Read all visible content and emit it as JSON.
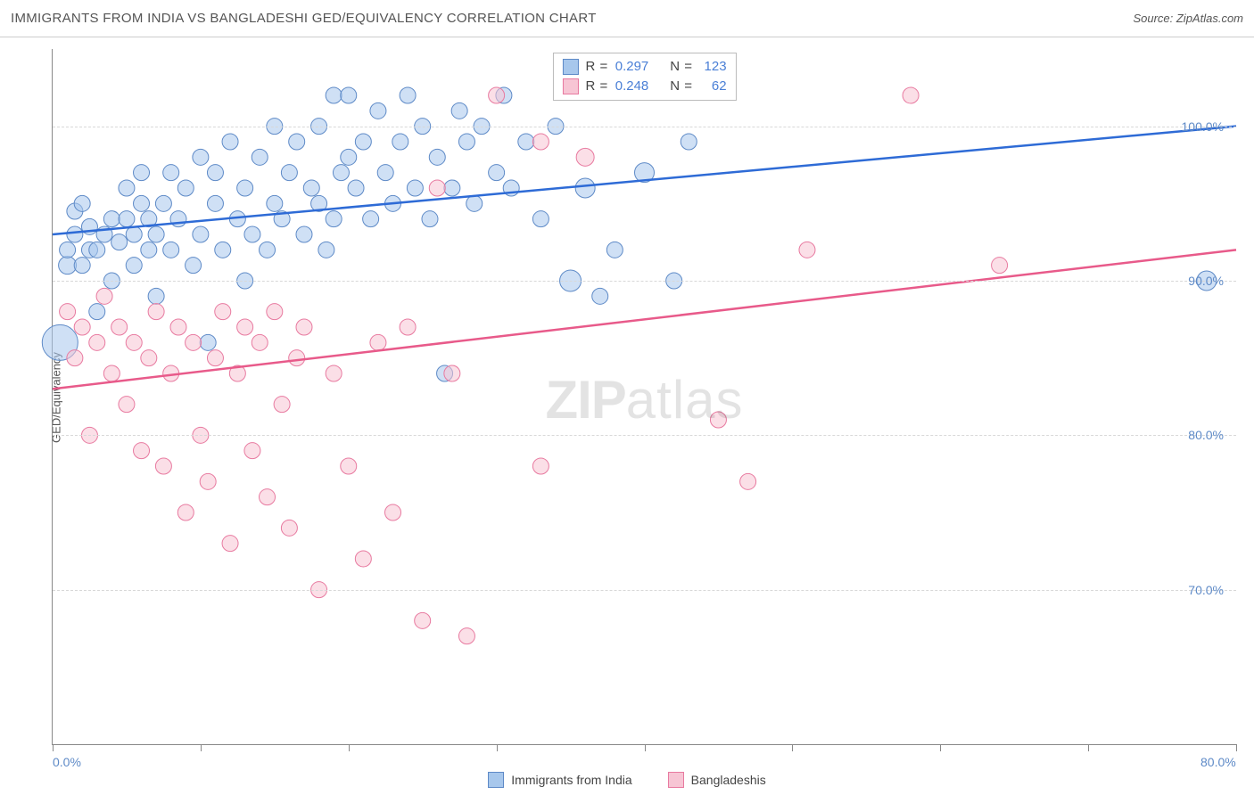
{
  "title": "IMMIGRANTS FROM INDIA VS BANGLADESHI GED/EQUIVALENCY CORRELATION CHART",
  "source_label": "Source: ZipAtlas.com",
  "y_axis_label": "GED/Equivalency",
  "watermark": {
    "bold": "ZIP",
    "rest": "atlas"
  },
  "chart": {
    "type": "scatter",
    "background_color": "#ffffff",
    "grid_color": "#d8d8d8",
    "axis_color": "#888888",
    "xlim": [
      0,
      80
    ],
    "ylim": [
      60,
      105
    ],
    "x_ticks": [
      0,
      10,
      20,
      30,
      40,
      50,
      60,
      70,
      80
    ],
    "x_tick_labels": {
      "0": "0.0%",
      "80": "80.0%"
    },
    "y_ticks": [
      70,
      80,
      90,
      100
    ],
    "y_tick_labels": {
      "70": "70.0%",
      "80": "80.0%",
      "90": "90.0%",
      "100": "100.0%"
    },
    "marker_radius": 9,
    "marker_opacity": 0.55,
    "line_width": 2.5,
    "series": [
      {
        "name": "Immigrants from India",
        "fill_color": "#a7c7ec",
        "stroke_color": "#5e8ac7",
        "line_color": "#2e6bd6",
        "R": "0.297",
        "N": "123",
        "regression": {
          "x1": 0,
          "y1": 93,
          "x2": 80,
          "y2": 100
        },
        "points": [
          [
            0.5,
            86,
            20
          ],
          [
            1,
            91,
            10
          ],
          [
            1,
            92,
            9
          ],
          [
            1.5,
            93,
            9
          ],
          [
            1.5,
            94.5,
            9
          ],
          [
            2,
            95,
            9
          ],
          [
            2,
            91,
            9
          ],
          [
            2.5,
            92,
            9
          ],
          [
            2.5,
            93.5,
            9
          ],
          [
            3,
            88,
            9
          ],
          [
            3,
            92,
            9
          ],
          [
            3.5,
            93,
            9
          ],
          [
            4,
            94,
            9
          ],
          [
            4,
            90,
            9
          ],
          [
            4.5,
            92.5,
            9
          ],
          [
            5,
            94,
            9
          ],
          [
            5,
            96,
            9
          ],
          [
            5.5,
            91,
            9
          ],
          [
            5.5,
            93,
            9
          ],
          [
            6,
            95,
            9
          ],
          [
            6,
            97,
            9
          ],
          [
            6.5,
            92,
            9
          ],
          [
            6.5,
            94,
            9
          ],
          [
            7,
            89,
            9
          ],
          [
            7,
            93,
            9
          ],
          [
            7.5,
            95,
            9
          ],
          [
            8,
            97,
            9
          ],
          [
            8,
            92,
            9
          ],
          [
            8.5,
            94,
            9
          ],
          [
            9,
            96,
            9
          ],
          [
            9.5,
            91,
            9
          ],
          [
            10,
            98,
            9
          ],
          [
            10,
            93,
            9
          ],
          [
            10.5,
            86,
            9
          ],
          [
            11,
            95,
            9
          ],
          [
            11,
            97,
            9
          ],
          [
            11.5,
            92,
            9
          ],
          [
            12,
            99,
            9
          ],
          [
            12.5,
            94,
            9
          ],
          [
            13,
            96,
            9
          ],
          [
            13,
            90,
            9
          ],
          [
            13.5,
            93,
            9
          ],
          [
            14,
            98,
            9
          ],
          [
            14.5,
            92,
            9
          ],
          [
            15,
            100,
            9
          ],
          [
            15,
            95,
            9
          ],
          [
            15.5,
            94,
            9
          ],
          [
            16,
            97,
            9
          ],
          [
            16.5,
            99,
            9
          ],
          [
            17,
            93,
            9
          ],
          [
            17.5,
            96,
            9
          ],
          [
            18,
            100,
            9
          ],
          [
            18,
            95,
            9
          ],
          [
            18.5,
            92,
            9
          ],
          [
            19,
            102,
            9
          ],
          [
            19,
            94,
            9
          ],
          [
            19.5,
            97,
            9
          ],
          [
            20,
            98,
            9
          ],
          [
            20,
            102,
            9
          ],
          [
            20.5,
            96,
            9
          ],
          [
            21,
            99,
            9
          ],
          [
            21.5,
            94,
            9
          ],
          [
            22,
            101,
            9
          ],
          [
            22.5,
            97,
            9
          ],
          [
            23,
            95,
            9
          ],
          [
            23.5,
            99,
            9
          ],
          [
            24,
            102,
            9
          ],
          [
            24.5,
            96,
            9
          ],
          [
            25,
            100,
            9
          ],
          [
            25.5,
            94,
            9
          ],
          [
            26,
            98,
            9
          ],
          [
            26.5,
            84,
            9
          ],
          [
            27,
            96,
            9
          ],
          [
            27.5,
            101,
            9
          ],
          [
            28,
            99,
            9
          ],
          [
            28.5,
            95,
            9
          ],
          [
            29,
            100,
            9
          ],
          [
            30,
            97,
            9
          ],
          [
            30.5,
            102,
            9
          ],
          [
            31,
            96,
            9
          ],
          [
            32,
            99,
            9
          ],
          [
            33,
            94,
            9
          ],
          [
            34,
            100,
            9
          ],
          [
            35,
            90,
            12
          ],
          [
            36,
            96,
            11
          ],
          [
            37,
            89,
            9
          ],
          [
            38,
            92,
            9
          ],
          [
            40,
            97,
            11
          ],
          [
            42,
            90,
            9
          ],
          [
            43,
            99,
            9
          ],
          [
            78,
            90,
            11
          ]
        ]
      },
      {
        "name": "Bangladeshis",
        "fill_color": "#f7c5d4",
        "stroke_color": "#e87aa0",
        "line_color": "#e85a8a",
        "R": "0.248",
        "N": "62",
        "regression": {
          "x1": 0,
          "y1": 83,
          "x2": 80,
          "y2": 92
        },
        "points": [
          [
            1,
            88,
            9
          ],
          [
            1.5,
            85,
            9
          ],
          [
            2,
            87,
            9
          ],
          [
            2.5,
            80,
            9
          ],
          [
            3,
            86,
            9
          ],
          [
            3.5,
            89,
            9
          ],
          [
            4,
            84,
            9
          ],
          [
            4.5,
            87,
            9
          ],
          [
            5,
            82,
            9
          ],
          [
            5.5,
            86,
            9
          ],
          [
            6,
            79,
            9
          ],
          [
            6.5,
            85,
            9
          ],
          [
            7,
            88,
            9
          ],
          [
            7.5,
            78,
            9
          ],
          [
            8,
            84,
            9
          ],
          [
            8.5,
            87,
            9
          ],
          [
            9,
            75,
            9
          ],
          [
            9.5,
            86,
            9
          ],
          [
            10,
            80,
            9
          ],
          [
            10.5,
            77,
            9
          ],
          [
            11,
            85,
            9
          ],
          [
            11.5,
            88,
            9
          ],
          [
            12,
            73,
            9
          ],
          [
            12.5,
            84,
            9
          ],
          [
            13,
            87,
            9
          ],
          [
            13.5,
            79,
            9
          ],
          [
            14,
            86,
            9
          ],
          [
            14.5,
            76,
            9
          ],
          [
            15,
            88,
            9
          ],
          [
            15.5,
            82,
            9
          ],
          [
            16,
            74,
            9
          ],
          [
            16.5,
            85,
            9
          ],
          [
            17,
            87,
            9
          ],
          [
            18,
            70,
            9
          ],
          [
            19,
            84,
            9
          ],
          [
            20,
            78,
            9
          ],
          [
            21,
            72,
            9
          ],
          [
            22,
            86,
            9
          ],
          [
            23,
            75,
            9
          ],
          [
            24,
            87,
            9
          ],
          [
            25,
            68,
            9
          ],
          [
            26,
            96,
            9
          ],
          [
            27,
            84,
            9
          ],
          [
            28,
            67,
            9
          ],
          [
            30,
            102,
            9
          ],
          [
            33,
            78,
            9
          ],
          [
            33,
            99,
            9
          ],
          [
            36,
            98,
            10
          ],
          [
            45,
            81,
            9
          ],
          [
            47,
            77,
            9
          ],
          [
            51,
            92,
            9
          ],
          [
            58,
            102,
            9
          ],
          [
            64,
            91,
            9
          ]
        ]
      }
    ]
  },
  "stats_box": {
    "rows": [
      {
        "swatch_fill": "#a7c7ec",
        "swatch_border": "#5e8ac7",
        "r_label": "R =",
        "r_val": "0.297",
        "n_label": "N =",
        "n_val": "123"
      },
      {
        "swatch_fill": "#f7c5d4",
        "swatch_border": "#e87aa0",
        "r_label": "R =",
        "r_val": "0.248",
        "n_label": "N =",
        "n_val": "62"
      }
    ]
  },
  "bottom_legend": [
    {
      "swatch_fill": "#a7c7ec",
      "swatch_border": "#5e8ac7",
      "label": "Immigrants from India"
    },
    {
      "swatch_fill": "#f7c5d4",
      "swatch_border": "#e87aa0",
      "label": "Bangladeshis"
    }
  ]
}
